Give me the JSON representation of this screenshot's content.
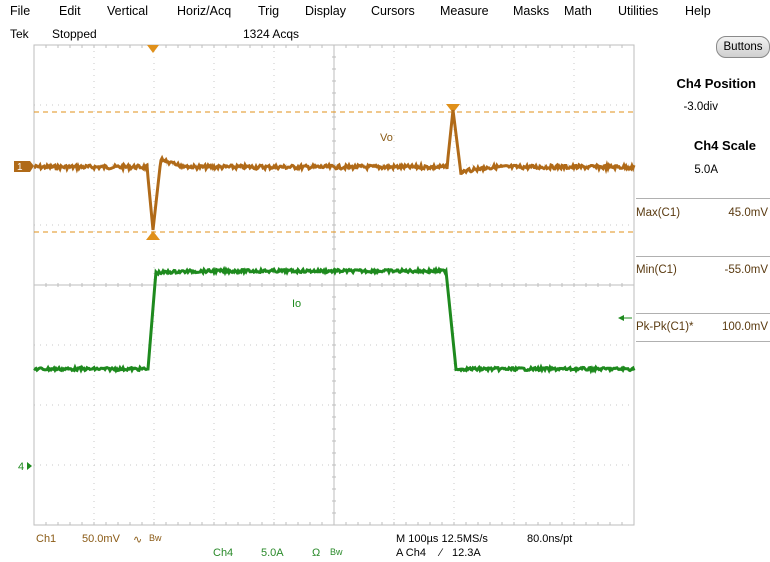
{
  "menu": [
    "File",
    "Edit",
    "Vertical",
    "Horiz/Acq",
    "Trig",
    "Display",
    "Cursors",
    "Measure",
    "Masks",
    "Math",
    "Utilities",
    "Help"
  ],
  "status": {
    "brand": "Tek",
    "state": "Stopped",
    "acqs": "1324 Acqs"
  },
  "buttons_label": "Buttons",
  "side": {
    "pos_title": "Ch4 Position",
    "pos_value": "-3.0div",
    "scale_title": "Ch4 Scale",
    "scale_value": "5.0A"
  },
  "measurements": [
    {
      "label": "Max(C1)",
      "value": "45.0mV"
    },
    {
      "label": "Min(C1)",
      "value": "-55.0mV"
    },
    {
      "label": "Pk-Pk(C1)*",
      "value": "100.0mV"
    }
  ],
  "traces": {
    "ch1_label": "Vo",
    "ch4_label": "Io",
    "ch1_marker": "1",
    "ch4_marker": "4"
  },
  "readouts": {
    "ch1": "Ch1",
    "ch1_scale": "50.0mV",
    "ch1_bw": "Bw",
    "ch4": "Ch4",
    "ch4_scale": "5.0A",
    "ch4_coupling": "Ω",
    "ch4_bw": "Bw",
    "timebase": "M 100µs 12.5MS/s",
    "resolution": "80.0ns/pt",
    "trigger": "A  Ch4",
    "trigger_slope": "∕",
    "trigger_level": "12.3A"
  },
  "colors": {
    "ch1": "#b06a18",
    "ch4": "#1e8a1e",
    "grid": "#bdbdbd",
    "cursor": "#e0901a"
  }
}
